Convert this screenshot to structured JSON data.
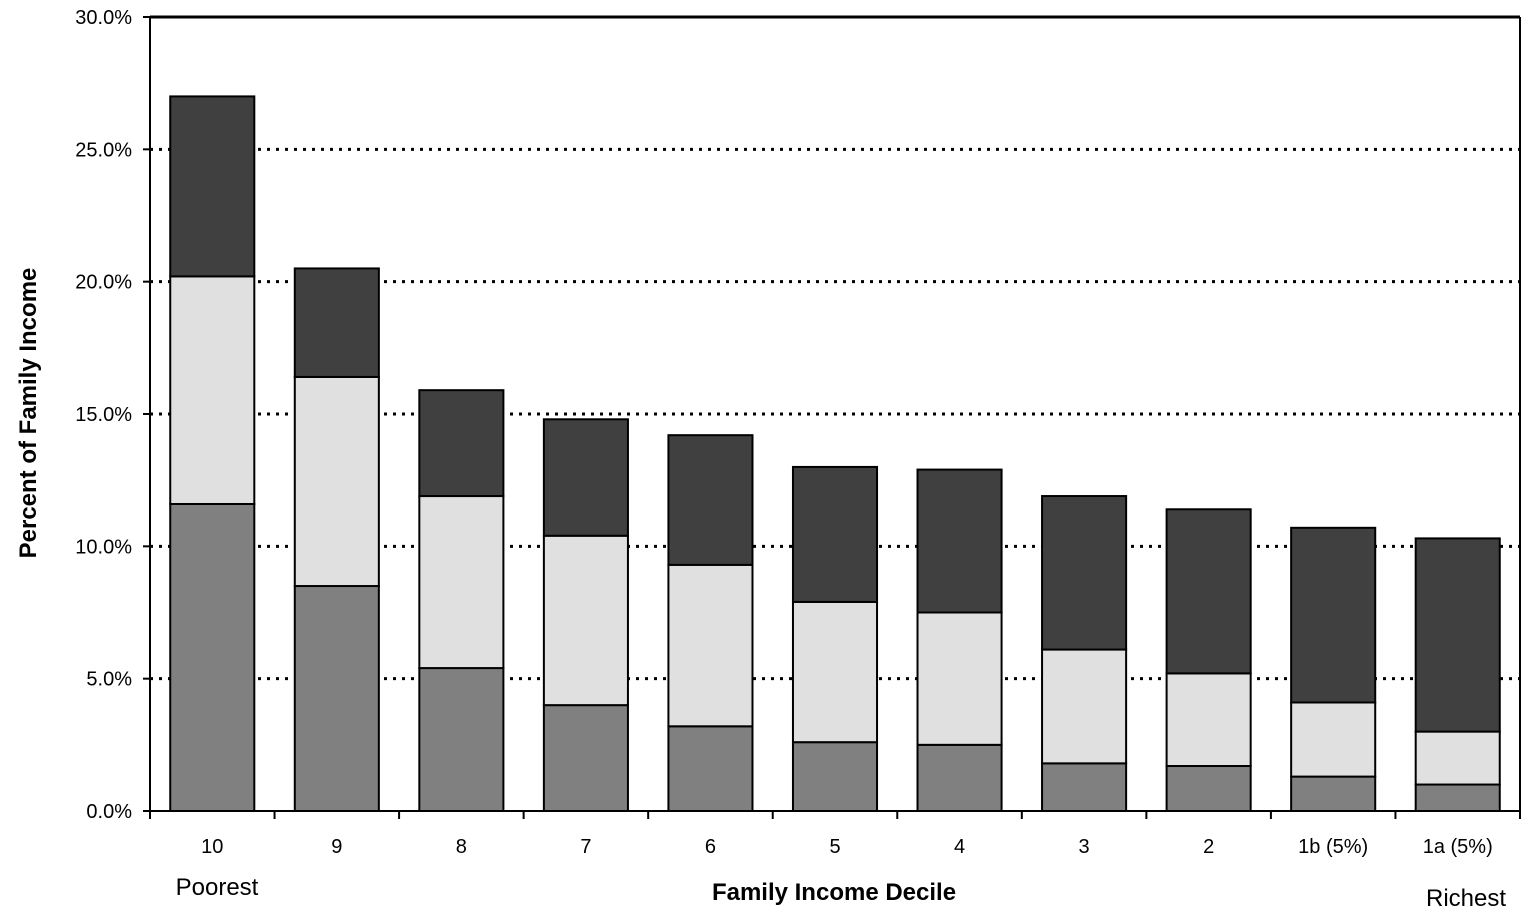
{
  "chart_data": {
    "type": "bar",
    "stacked": true,
    "categories": [
      "10",
      "9",
      "8",
      "7",
      "6",
      "5",
      "4",
      "3",
      "2",
      "1b (5%)",
      "1a (5%)"
    ],
    "series": [
      {
        "color": "#808080",
        "values": [
          11.6,
          8.5,
          5.4,
          4.0,
          3.2,
          2.6,
          2.5,
          1.8,
          1.7,
          1.3,
          1.0
        ]
      },
      {
        "color": "#e0e0e0",
        "values": [
          8.6,
          7.9,
          6.5,
          6.4,
          6.1,
          5.3,
          5.0,
          4.3,
          3.5,
          2.8,
          2.0
        ]
      },
      {
        "color": "#404040",
        "values": [
          6.8,
          4.1,
          4.0,
          4.4,
          4.9,
          5.1,
          5.4,
          5.8,
          6.2,
          6.6,
          7.3
        ]
      }
    ],
    "xlabel": "Family Income Decile",
    "ylabel": "Percent of Family Income",
    "ylim": [
      0,
      30
    ],
    "yticks": [
      "0.0%",
      "5.0%",
      "10.0%",
      "15.0%",
      "20.0%",
      "25.0%",
      "30.0%"
    ],
    "ytick_values": [
      0,
      5,
      10,
      15,
      20,
      25,
      30
    ],
    "grid": "dotted horizontal",
    "legend": "none",
    "annotations": {
      "left": "Poorest",
      "right": "Richest"
    }
  }
}
